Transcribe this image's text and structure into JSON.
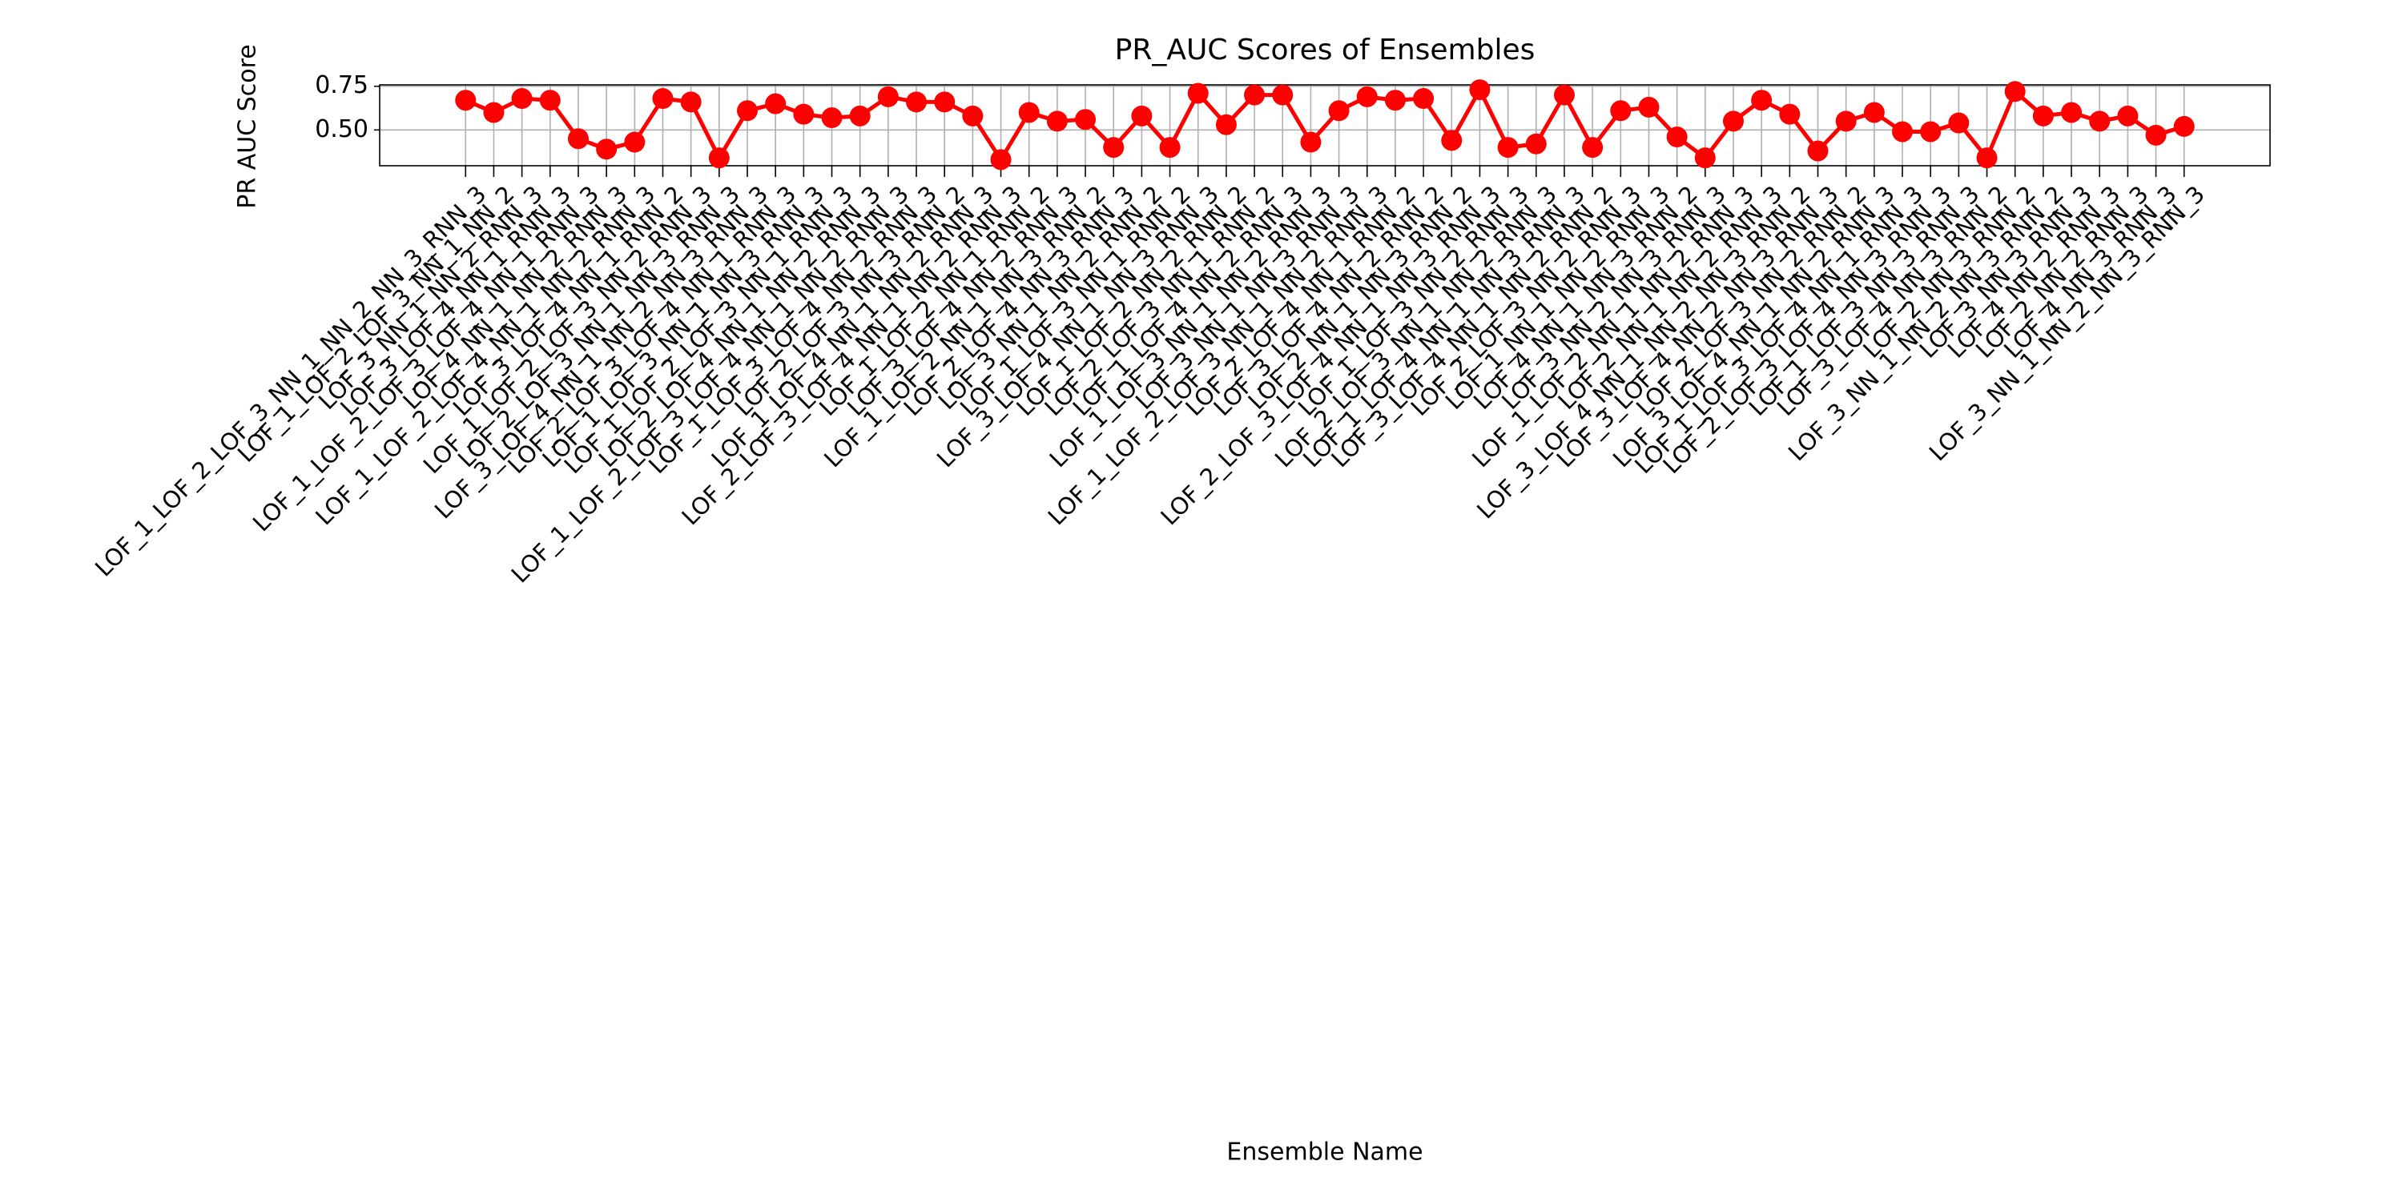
{
  "chart_data": {
    "type": "line",
    "title": "PR_AUC Scores of Ensembles",
    "xlabel": "Ensemble Name",
    "ylabel": "PR AUC Score",
    "color": "#ff0000",
    "grid": true,
    "categories": [
      "LOF_1_LOF_2_LOF_3_NN_1_NN_2_NN_3_RNN_3",
      "LOF_1_LOF_2_LOF_3_NN_1_NN_2",
      "LOF_3_NN_1_NN_2_RNN_3",
      "LOF_3_LOF_4_NN_1_RNN_3",
      "LOF_1_LOF_2_LOF_3_LOF_4_NN_1_RNN_3",
      "LOF_4_NN_1_NN_2_RNN_3",
      "LOF_1_LOF_2_LOF_4_NN_1_NN_2_RNN_3",
      "LOF_3_LOF_4_NN_1_RNN_2",
      "LOF_1_LOF_2_LOF_3_NN_2_RNN_3",
      "LOF_2_LOF_3_NN_1_NN_3_RNN_3",
      "LOF_3_LOF_4_NN_1_NN_2_NN_3_RNN_3",
      "LOF_2_LOF_3_LOF_4_NN_1_RNN_3",
      "LOF_1_LOF_3_NN_1_NN_3_RNN_3",
      "LOF_1_LOF_2_LOF_3_NN_1_RNN_3",
      "LOF_2_LOF_4_NN_1_NN_2_RNN_3",
      "LOF_1_LOF_2_LOF_3_LOF_4_NN_1_NN_2_RNN_3",
      "LOF_1_LOF_3_LOF_4_NN_2_RNN_3",
      "LOF_2_LOF_3_NN_3_RNN_2",
      "LOF_1_LOF_4_NN_1_NN_2_RNN_3",
      "LOF_2_LOF_3_LOF_4_NN_1_NN_2_RNN_3",
      "LOF_1_LOF_2_NN_1_RNN_2",
      "LOF_3_LOF_4_NN_2_RNN_3",
      "LOF_1_LOF_2_NN_1_NN_3_RNN_2",
      "LOF_2_LOF_4_NN_3_RNN_3",
      "LOF_3_NN_1_NN_2_RNN_2",
      "LOF_1_LOF_3_NN_1_RNN_2",
      "LOF_3_LOF_4_NN_1_NN_3_RNN_3",
      "LOF_1_LOF_2_NN_2_RNN_2",
      "LOF_2_LOF_3_NN_1_RNN_2",
      "LOF_1_LOF_4_NN_2_RNN_3",
      "LOF_1_LOF_3_NN_1_NN_2_RNN_3",
      "LOF_3_NN_1_NN_3_RNN_3",
      "LOF_1_LOF_2_LOF_3_NN_1_NN_2_RNN_3",
      "LOF_2_LOF_4_NN_1_RNN_2",
      "LOF_3_LOF_4_NN_2_RNN_2",
      "LOF_2_NN_1_NN_3_RNN_2",
      "LOF_2_LOF_3_LOF_4_NN_1_NN_3_RNN_3",
      "LOF_1_LOF_3_NN_2_RNN_3",
      "LOF_2_LOF_3_NN_1_NN_2_RNN_3",
      "LOF_1_LOF_4_NN_1_NN_3_RNN_3",
      "LOF_3_LOF_4_NN_1_NN_2_RNN_2",
      "LOF_2_LOF_3_NN_2_RNN_3",
      "LOF_1_NN_1_NN_2_RNN_3",
      "LOF_4_NN_1_NN_3_RNN_2",
      "LOF_3_NN_2_NN_3_RNN_3",
      "LOF_1_LOF_2_NN_1_NN_2_RNN_3",
      "LOF_2_NN_1_NN_2_RNN_3",
      "LOF_3_LOF_4_NN_1_NN_2_NN_3_RNN_2",
      "LOF_3_LOF_4_NN_2_NN_3_RNN_3",
      "LOF_2_LOF_3_NN_2_RNN_2",
      "LOF_3_LOF_4_NN_1_NN_2_RNN_3",
      "LOF_1_LOF_3_LOF_4_NN_1_RNN_3",
      "LOF_2_LOF_3_LOF_4_NN_3_RNN_3",
      "LOF_1_LOF_3_NN_3_RNN_3",
      "LOF_3_LOF_4_NN_3_RNN_2",
      "LOF_2_NN_3_RNN_2",
      "LOF_3_NN_1_NN_2_NN_3_RNN_2",
      "LOF_3_NN_3_RNN_3",
      "LOF_4_NN_2_RNN_3",
      "LOF_2_NN_2_RNN_3",
      "LOF_4_NN_3_RNN_3",
      "LOF_3_NN_1_NN_2_NN_3_RNN_3"
    ],
    "values": [
      0.67,
      0.6,
      0.68,
      0.67,
      0.45,
      0.39,
      0.43,
      0.68,
      0.66,
      0.34,
      0.61,
      0.65,
      0.59,
      0.57,
      0.58,
      0.69,
      0.66,
      0.66,
      0.58,
      0.33,
      0.6,
      0.55,
      0.56,
      0.4,
      0.58,
      0.4,
      0.71,
      0.53,
      0.7,
      0.7,
      0.43,
      0.61,
      0.69,
      0.67,
      0.68,
      0.44,
      0.73,
      0.4,
      0.42,
      0.7,
      0.4,
      0.61,
      0.63,
      0.46,
      0.34,
      0.55,
      0.67,
      0.59,
      0.38,
      0.55,
      0.6,
      0.49,
      0.49,
      0.54,
      0.34,
      0.72,
      0.58,
      0.6,
      0.55,
      0.58,
      0.47,
      0.52
    ],
    "ylim": [
      0.295,
      0.758
    ],
    "yticks": [
      {
        "value": 0.5,
        "label": "0.50"
      },
      {
        "value": 0.75,
        "label": "0.75"
      }
    ]
  }
}
